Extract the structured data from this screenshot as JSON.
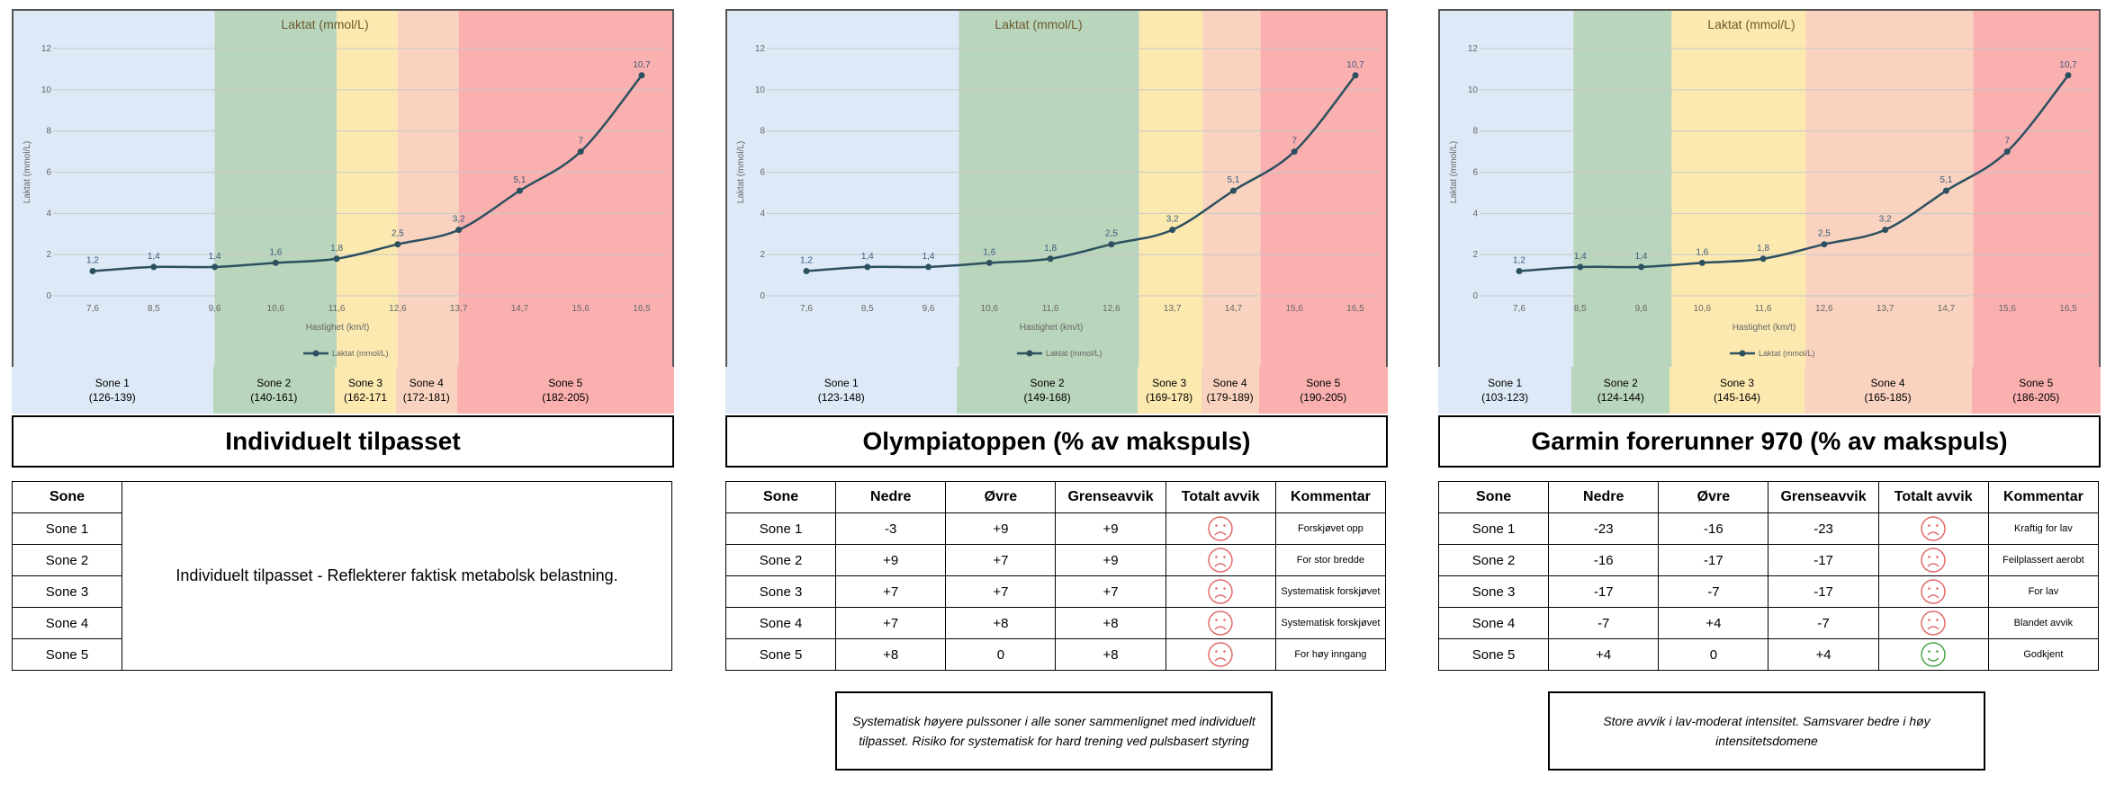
{
  "colors": {
    "zone1": "#dde9f6",
    "zone2": "#b9d5bb",
    "zone3": "#fce9b0",
    "zone4": "#f9d3bf",
    "zone5": "#fbb0b0",
    "line": "#2c5060",
    "sad": "#e06b6b",
    "happy": "#49a449"
  },
  "chart_data": [
    {
      "type": "line",
      "title": "Laktat (mmol/L)",
      "xlabel": "Hastighet (km/t)",
      "ylabel": "Laktat (mmol/L)",
      "legend": "Laktat (mmol/L)",
      "legend_position": "bottom",
      "ylim": [
        0,
        12
      ],
      "yticks": [
        "0",
        "2",
        "4",
        "6",
        "8",
        "10",
        "12"
      ],
      "categories": [
        "7,6",
        "8,5",
        "9,6",
        "10,6",
        "11,6",
        "12,6",
        "13,7",
        "14,7",
        "15,6",
        "16,5"
      ],
      "values": [
        1.2,
        1.4,
        1.4,
        1.6,
        1.8,
        2.5,
        3.2,
        5.1,
        7,
        10.7
      ],
      "value_labels": [
        "1,2",
        "1,4",
        "1,4",
        "1,6",
        "1,8",
        "2,5",
        "3,2",
        "5,1",
        "7",
        "10,7"
      ],
      "zone_bounds": [
        7.6,
        9.6,
        11.6,
        12.6,
        13.7,
        16.5
      ]
    },
    {
      "type": "line",
      "title": "Laktat (mmol/L)",
      "xlabel": "Hastighet (km/t)",
      "ylabel": "Laktat (mmol/L)",
      "legend": "Laktat (mmol/L)",
      "legend_position": "bottom",
      "ylim": [
        0,
        12
      ],
      "yticks": [
        "0",
        "2",
        "4",
        "6",
        "8",
        "10",
        "12"
      ],
      "categories": [
        "7,6",
        "8,5",
        "9,6",
        "10,6",
        "11,6",
        "12,6",
        "13,7",
        "14,7",
        "15,6",
        "16,5"
      ],
      "values": [
        1.2,
        1.4,
        1.4,
        1.6,
        1.8,
        2.5,
        3.2,
        5.1,
        7,
        10.7
      ],
      "value_labels": [
        "1,2",
        "1,4",
        "1,4",
        "1,6",
        "1,8",
        "2,5",
        "3,2",
        "5,1",
        "7",
        "10,7"
      ],
      "zone_bounds": [
        7.6,
        10.1,
        13.1,
        14.2,
        15.1,
        16.5
      ]
    },
    {
      "type": "line",
      "title": "Laktat (mmol/L)",
      "xlabel": "Hastighet (km/t)",
      "ylabel": "Laktat (mmol/L)",
      "legend": "Laktat (mmol/L)",
      "legend_position": "bottom",
      "ylim": [
        0,
        12
      ],
      "yticks": [
        "0",
        "2",
        "4",
        "6",
        "8",
        "10",
        "12"
      ],
      "categories": [
        "7,6",
        "8,5",
        "9,6",
        "10,6",
        "11,6",
        "12,6",
        "13,7",
        "14,7",
        "15,6",
        "16,5"
      ],
      "values": [
        1.2,
        1.4,
        1.4,
        1.6,
        1.8,
        2.5,
        3.2,
        5.1,
        7,
        10.7
      ],
      "value_labels": [
        "1,2",
        "1,4",
        "1,4",
        "1,6",
        "1,8",
        "2,5",
        "3,2",
        "5,1",
        "7",
        "10,7"
      ],
      "zone_bounds": [
        7.6,
        8.4,
        10.1,
        12.3,
        15.1,
        16.5
      ]
    }
  ],
  "panels": [
    {
      "zones": [
        {
          "name": "Sone 1",
          "range": "(126-139)"
        },
        {
          "name": "Sone 2",
          "range": "(140-161)"
        },
        {
          "name": "Sone 3",
          "range": "(162-171"
        },
        {
          "name": "Sone 4",
          "range": "(172-181)"
        },
        {
          "name": "Sone 5",
          "range": "(182-205)"
        }
      ],
      "title": "Individuelt tilpasset",
      "table_header": "Sone",
      "rows": [
        "Sone 1",
        "Sone 2",
        "Sone 3",
        "Sone 4",
        "Sone 5"
      ],
      "description": "Individuelt tilpasset - Reflekterer faktisk metabolsk belastning."
    },
    {
      "zones": [
        {
          "name": "Sone 1",
          "range": "(123-148)"
        },
        {
          "name": "Sone 2",
          "range": "(149-168)"
        },
        {
          "name": "Sone 3",
          "range": "(169-178)"
        },
        {
          "name": "Sone 4",
          "range": "(179-189)"
        },
        {
          "name": "Sone 5",
          "range": "(190-205)"
        }
      ],
      "title": "Olympiatoppen (% av makspuls)",
      "headers": [
        "Sone",
        "Nedre",
        "Øvre",
        "Grenseavvik",
        "Totalt avvik",
        "Kommentar"
      ],
      "rows": [
        {
          "sone": "Sone 1",
          "nedre": "-3",
          "ovre": "+9",
          "grense": "+9",
          "avvik": "sad",
          "kommentar": "Forskjøvet opp"
        },
        {
          "sone": "Sone 2",
          "nedre": "+9",
          "ovre": "+7",
          "grense": "+9",
          "avvik": "sad",
          "kommentar": "For stor bredde"
        },
        {
          "sone": "Sone 3",
          "nedre": "+7",
          "ovre": "+7",
          "grense": "+7",
          "avvik": "sad",
          "kommentar": "Systematisk forskjøvet"
        },
        {
          "sone": "Sone 4",
          "nedre": "+7",
          "ovre": "+8",
          "grense": "+8",
          "avvik": "sad",
          "kommentar": "Systematisk forskjøvet"
        },
        {
          "sone": "Sone 5",
          "nedre": "+8",
          "ovre": "0",
          "grense": "+8",
          "avvik": "sad",
          "kommentar": "For høy inngang"
        }
      ],
      "note": "Systematisk høyere pulssoner i alle soner sammenlignet med individuelt tilpasset. Risiko for systematisk for hard trening ved pulsbasert styring"
    },
    {
      "zones": [
        {
          "name": "Sone 1",
          "range": "(103-123)"
        },
        {
          "name": "Sone 2",
          "range": "(124-144)"
        },
        {
          "name": "Sone 3",
          "range": "(145-164)"
        },
        {
          "name": "Sone 4",
          "range": "(165-185)"
        },
        {
          "name": "Sone 5",
          "range": "(186-205)"
        }
      ],
      "title": "Garmin forerunner 970 (% av makspuls)",
      "headers": [
        "Sone",
        "Nedre",
        "Øvre",
        "Grenseavvik",
        "Totalt avvik",
        "Kommentar"
      ],
      "rows": [
        {
          "sone": "Sone 1",
          "nedre": "-23",
          "ovre": "-16",
          "grense": "-23",
          "avvik": "sad",
          "kommentar": "Kraftig for lav"
        },
        {
          "sone": "Sone 2",
          "nedre": "-16",
          "ovre": "-17",
          "grense": "-17",
          "avvik": "sad",
          "kommentar": "Feilplassert aerobt"
        },
        {
          "sone": "Sone 3",
          "nedre": "-17",
          "ovre": "-7",
          "grense": "-17",
          "avvik": "sad",
          "kommentar": "For lav"
        },
        {
          "sone": "Sone 4",
          "nedre": "-7",
          "ovre": "+4",
          "grense": "-7",
          "avvik": "sad",
          "kommentar": "Blandet avvik"
        },
        {
          "sone": "Sone 5",
          "nedre": "+4",
          "ovre": "0",
          "grense": "+4",
          "avvik": "happy",
          "kommentar": "Godkjent"
        }
      ],
      "note": "Store avvik i lav-moderat intensitet. Samsvarer bedre i høy intensitetsdomene"
    }
  ]
}
